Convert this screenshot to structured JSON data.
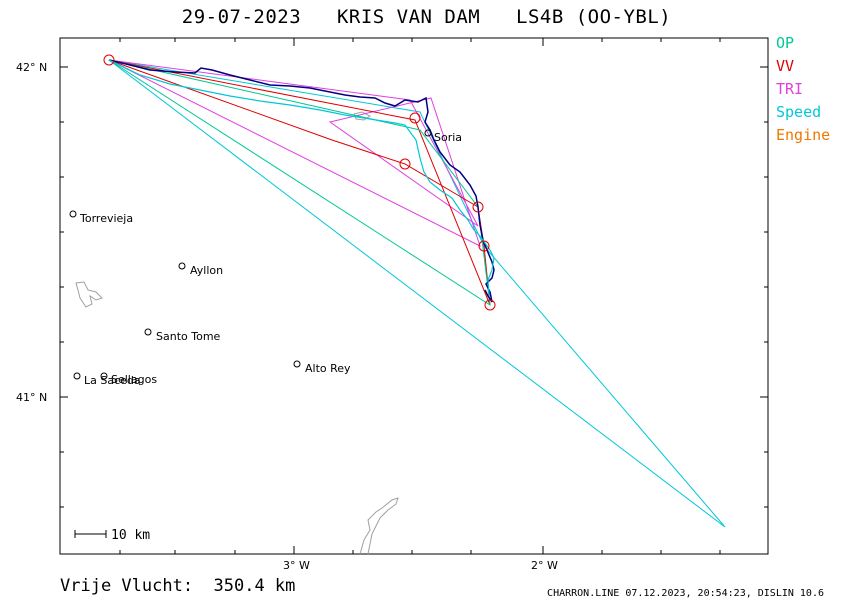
{
  "title": "29-07-2023   KRIS VAN DAM   LS4B (OO-YBL)",
  "legend": {
    "op": "OP",
    "vv": "VV",
    "tri": "TRI",
    "speed": "Speed",
    "engine": "Engine"
  },
  "colors": {
    "op": "#00c896",
    "vv": "#e00000",
    "tri": "#e040e0",
    "speed": "#00c8d8",
    "engine": "#f07800",
    "track": "#000080",
    "coast": "#a0a0a0"
  },
  "axes": {
    "lat_top": "42° N",
    "lat_bottom": "41° N",
    "lon_left": "3° W",
    "lon_right": "2° W"
  },
  "scale_label": "10 km",
  "places": [
    {
      "name": "Soria"
    },
    {
      "name": "Torrevieja"
    },
    {
      "name": "Ayllon"
    },
    {
      "name": "Santo Tome"
    },
    {
      "name": "Alto Rey"
    },
    {
      "name": "La Saceda"
    },
    {
      "name": "Sellagos"
    }
  ],
  "footer": {
    "distance_label": "Vrije Vlucht:  350.4 km",
    "credit": "CHARRON.LINE 07.12.2023, 20:54:23, DISLIN 10.6"
  }
}
